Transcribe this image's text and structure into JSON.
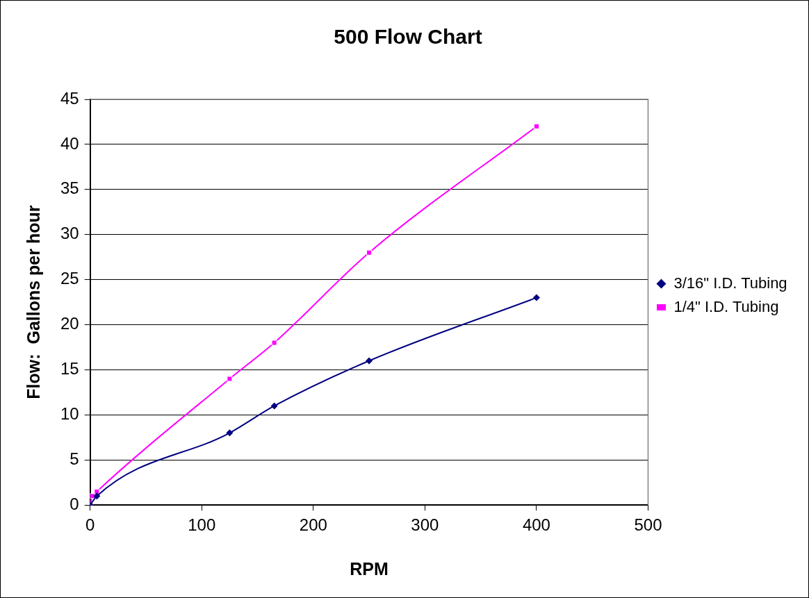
{
  "chart_data": {
    "type": "line",
    "title": "500 Flow Chart",
    "xlabel": "RPM",
    "ylabel": "Flow:  Gallons per hour",
    "xlim": [
      0,
      500
    ],
    "xticks": [
      0,
      100,
      200,
      300,
      400,
      500
    ],
    "ylim": [
      0,
      45
    ],
    "yticks": [
      0,
      5,
      10,
      15,
      20,
      25,
      30,
      35,
      40,
      45
    ],
    "grid": "y",
    "legend": "right",
    "series": [
      {
        "name": "3/16\" I.D. Tubing",
        "color": "#000080",
        "marker": "diamond",
        "x": [
          0,
          6,
          125,
          165,
          250,
          400
        ],
        "values": [
          0,
          1,
          8,
          11,
          16,
          23
        ]
      },
      {
        "name": "1/4\" I.D. Tubing",
        "color": "#ff00ff",
        "marker": "square",
        "x": [
          0,
          2,
          6,
          125,
          165,
          250,
          400
        ],
        "values": [
          0,
          1,
          1.5,
          14,
          18,
          28,
          42
        ]
      }
    ]
  }
}
